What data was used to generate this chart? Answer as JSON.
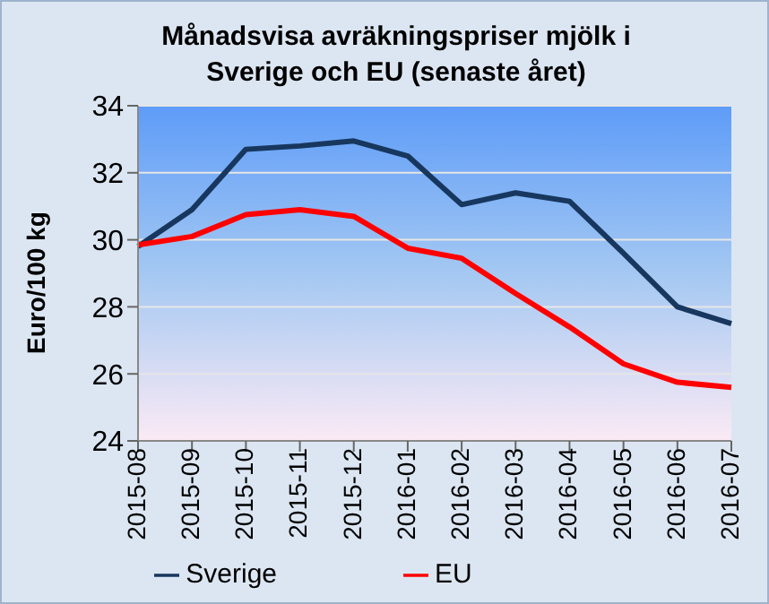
{
  "chart_data": {
    "type": "line",
    "title": "Månadsvisa avräkningspriser mjölk i Sverige och EU (senaste året)",
    "ylabel": "Euro/100 kg",
    "categories": [
      "2015-08",
      "2015-09",
      "2015-10",
      "2015-11",
      "2015-12",
      "2016-01",
      "2016-02",
      "2016-03",
      "2016-04",
      "2016-05",
      "2016-06",
      "2016-07"
    ],
    "series": [
      {
        "name": "Sverige",
        "color": "#17375e",
        "values": [
          29.8,
          30.9,
          32.7,
          32.8,
          32.95,
          32.5,
          31.05,
          31.4,
          31.15,
          29.6,
          28.0,
          27.5
        ]
      },
      {
        "name": "EU",
        "color": "#ff0000",
        "values": [
          29.85,
          30.1,
          30.75,
          30.9,
          30.7,
          29.75,
          29.45,
          28.4,
          27.4,
          26.3,
          25.75,
          25.6
        ]
      }
    ],
    "ylim": [
      24,
      34
    ],
    "yticks": [
      24,
      26,
      28,
      30,
      32,
      34
    ],
    "grid": "y",
    "legend": "bottom",
    "marker": "none",
    "line_style": "solid"
  }
}
